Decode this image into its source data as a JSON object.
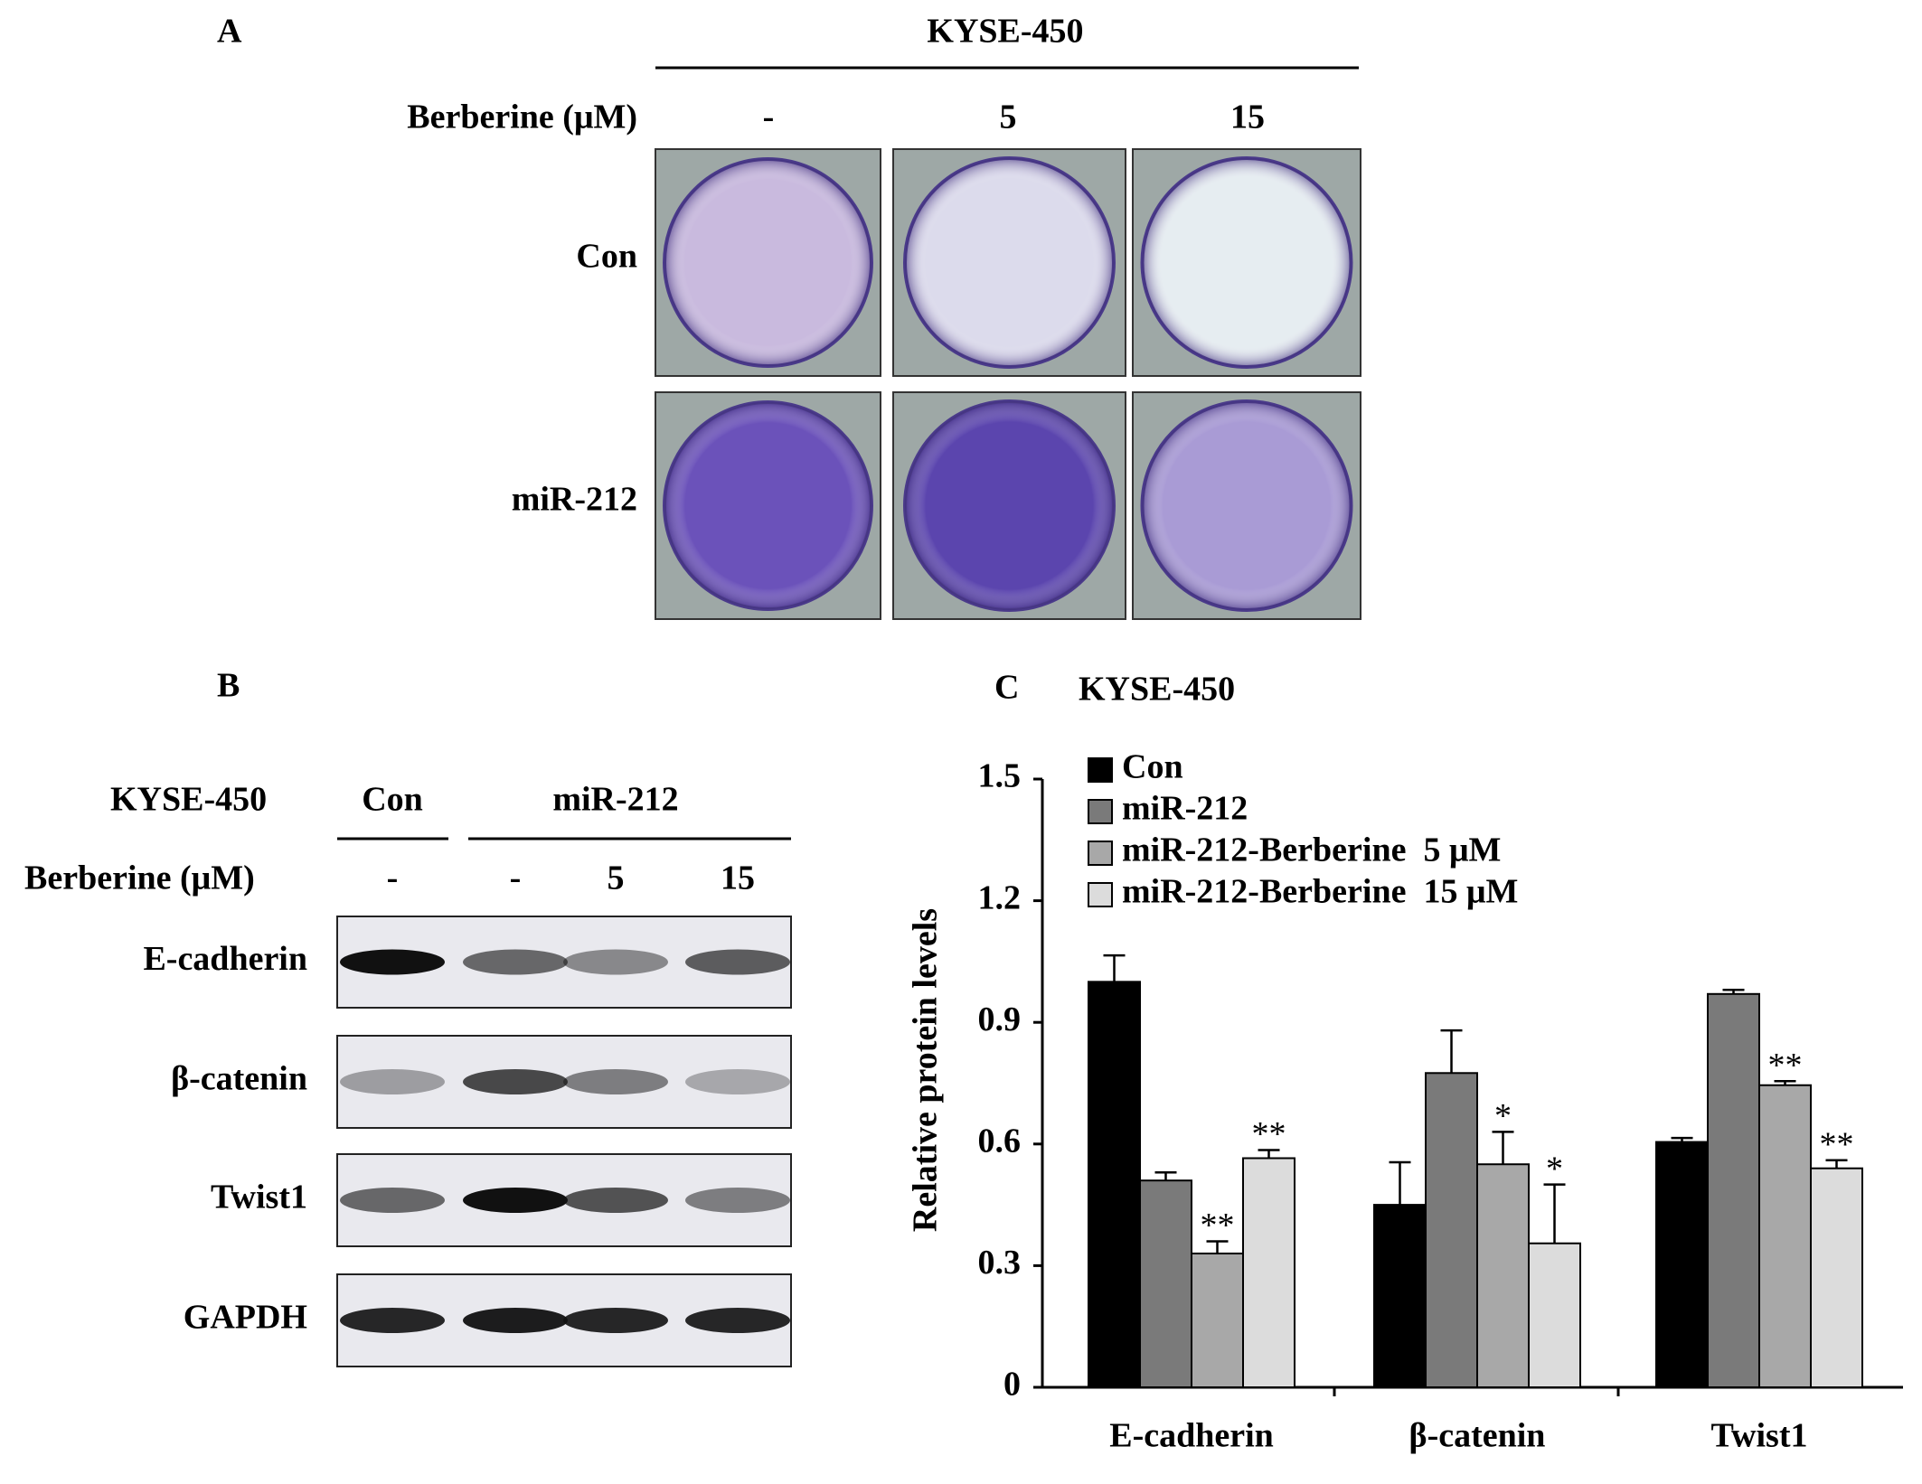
{
  "panel_a": {
    "label": "A",
    "cell_line": "KYSE-450",
    "treatment_label": "Berberine (μM)",
    "doses": [
      "-",
      "5",
      "15"
    ],
    "rows": [
      "Con",
      "miR-212"
    ]
  },
  "panel_b": {
    "label": "B",
    "cell_line": "KYSE-450",
    "groups": [
      "Con",
      "miR-212"
    ],
    "treatment_label": "Berberine (μM)",
    "doses": [
      "-",
      "-",
      "5",
      "15"
    ],
    "proteins": [
      "E-cadherin",
      "β-catenin",
      "Twist1",
      "GAPDH"
    ]
  },
  "chart_data": {
    "type": "bar",
    "panel_label": "C",
    "title": "KYSE-450",
    "y_label": "Relative protein levels",
    "categories": [
      "E-cadherin",
      "β-catenin",
      "Twist1"
    ],
    "series": [
      {
        "name": "Con",
        "color": "#000000",
        "values": [
          1.0,
          0.45,
          0.605
        ],
        "errors": [
          0.065,
          0.105,
          0.01
        ]
      },
      {
        "name": "miR-212",
        "color": "#7a7a7a",
        "values": [
          0.51,
          0.775,
          0.97
        ],
        "errors": [
          0.02,
          0.105,
          0.01
        ]
      },
      {
        "name": "miR-212-Berberine  5 μM",
        "color": "#a8a8a8",
        "values": [
          0.33,
          0.55,
          0.745
        ],
        "errors": [
          0.03,
          0.08,
          0.01
        ],
        "significance": [
          "**",
          "*",
          "**"
        ]
      },
      {
        "name": "miR-212-Berberine  15 μM",
        "color": "#dcdcdc",
        "values": [
          0.565,
          0.355,
          0.54
        ],
        "errors": [
          0.02,
          0.145,
          0.02
        ],
        "significance": [
          "**",
          "*",
          "**"
        ]
      }
    ],
    "ylim": [
      0,
      1.5
    ],
    "yticks": [
      0,
      0.3,
      0.6,
      0.9,
      1.2,
      1.5
    ],
    "grid": false,
    "legend": "top-left"
  }
}
